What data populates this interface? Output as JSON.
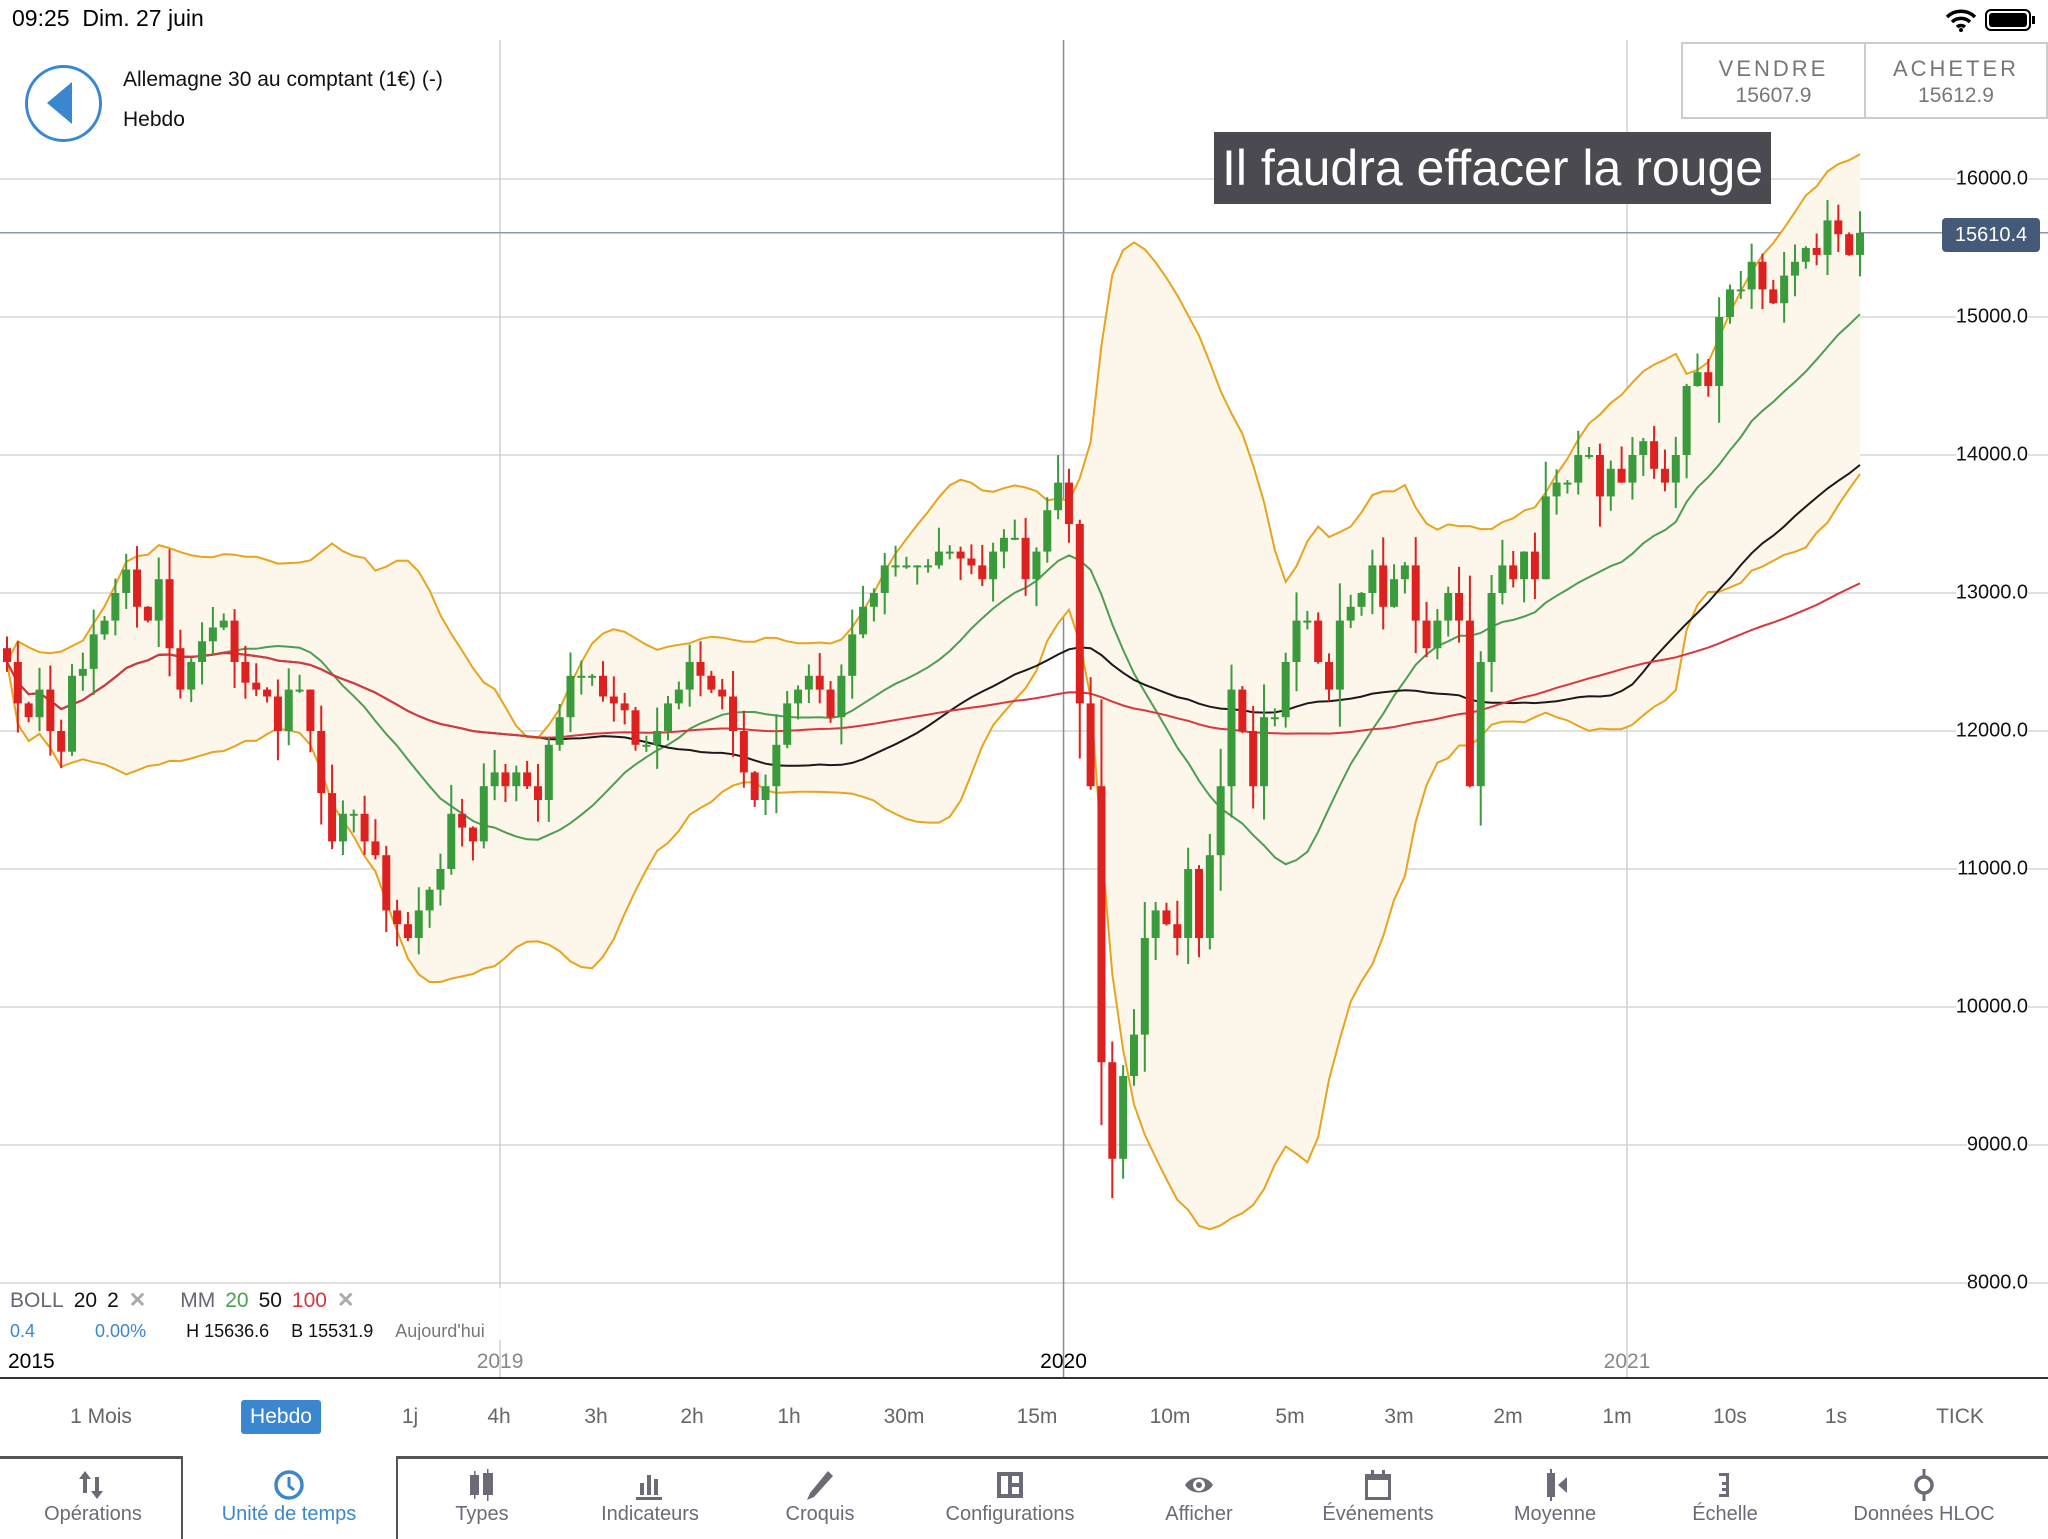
{
  "status": {
    "time": "09:25",
    "date": "Dim. 27 juin"
  },
  "header": {
    "instrument": "Allemagne 30 au comptant (1€) (-)",
    "timeframe": "Hebdo"
  },
  "trade": {
    "sell_label": "VENDRE",
    "sell_price": "15607.9",
    "buy_label": "ACHETER",
    "buy_price": "15612.9"
  },
  "annotation": "Il faudra effacer la rouge",
  "current_price": "15610.4",
  "legend": {
    "boll": "BOLL",
    "boll_p1": "20",
    "boll_p2": "2",
    "mm": "MM",
    "mm1": "20",
    "mm2": "50",
    "mm3": "100",
    "change": "0.4",
    "change_pct": "0.00%",
    "high": "H 15636.6",
    "low": "B 15531.9",
    "period": "Aujourd'hui"
  },
  "colors": {
    "up": "#3a9b3c",
    "down": "#dd2020",
    "boll": "#e8a41c",
    "ma20": "#4e9e52",
    "ma50": "#1a1a1a",
    "ma100": "#d9363e",
    "accent": "#3a87cf"
  },
  "chart_data": {
    "type": "candlestick",
    "ylim": [
      8000,
      16300
    ],
    "yticks": [
      "16000.0",
      "15000.0",
      "14000.0",
      "13000.0",
      "12000.0",
      "11000.0",
      "10000.0",
      "9000.0",
      "8000.0"
    ],
    "xticks": [
      {
        "label": "2015",
        "index": 0
      },
      {
        "label": "2019",
        "index": 45.5
      },
      {
        "label": "2020",
        "index": 97.5
      },
      {
        "label": "2021",
        "index": 149.5
      }
    ],
    "first_open": 12600,
    "closes": [
      12500,
      12200,
      12100,
      12300,
      12000,
      11850,
      12400,
      12450,
      12700,
      12800,
      13000,
      13170,
      12900,
      12800,
      13100,
      12600,
      12300,
      12500,
      12650,
      12750,
      12800,
      12500,
      12350,
      12300,
      12250,
      12000,
      12300,
      12300,
      12000,
      11550,
      11200,
      11400,
      11400,
      11200,
      11100,
      10700,
      10600,
      10500,
      10700,
      10850,
      11000,
      11400,
      11300,
      11200,
      11600,
      11700,
      11600,
      11700,
      11600,
      11500,
      11900,
      12100,
      12400,
      12400,
      12400,
      12250,
      12200,
      12150,
      11900,
      11900,
      12000,
      12200,
      12300,
      12500,
      12400,
      12300,
      12250,
      12000,
      11700,
      11500,
      11600,
      11900,
      12200,
      12300,
      12400,
      12300,
      12100,
      12400,
      12700,
      12900,
      13000,
      13200,
      13200,
      13200,
      13200,
      13200,
      13300,
      13300,
      13250,
      13200,
      13100,
      13300,
      13400,
      13400,
      13100,
      13300,
      13600,
      13800,
      13500,
      12200,
      11600,
      9600,
      8900,
      9500,
      9800,
      10500,
      10700,
      10600,
      10500,
      11000,
      10500,
      11100,
      11600,
      12300,
      12000,
      11600,
      12100,
      12100,
      12500,
      12800,
      12800,
      12500,
      12300,
      12800,
      12900,
      13000,
      13200,
      12900,
      13100,
      13200,
      12800,
      12600,
      12800,
      13000,
      12800,
      11600,
      12500,
      13000,
      13200,
      13100,
      13300,
      13100,
      13700,
      13800,
      13800,
      14000,
      14000,
      13700,
      13900,
      13800,
      14000,
      14100,
      13900,
      13800,
      14000,
      14500,
      14600,
      14500,
      15000,
      15200,
      15200,
      15400,
      15200,
      15100,
      15300,
      15400,
      15500,
      15450,
      15700,
      15600,
      15450,
      15610
    ],
    "indicators": {
      "bollinger": {
        "period": 20,
        "stddev": 2
      },
      "moving_averages": [
        20,
        50,
        100
      ]
    }
  },
  "timeframes": [
    "1 Mois",
    "Hebdo",
    "1j",
    "4h",
    "3h",
    "2h",
    "1h",
    "30m",
    "15m",
    "10m",
    "5m",
    "3m",
    "2m",
    "1m",
    "10s",
    "1s",
    "TICK"
  ],
  "toolbar": [
    "Opérations",
    "Unité de temps",
    "Types",
    "Indicateurs",
    "Croquis",
    "Configurations",
    "Afficher",
    "Événements",
    "Moyenne",
    "Échelle",
    "Données HLOC"
  ]
}
